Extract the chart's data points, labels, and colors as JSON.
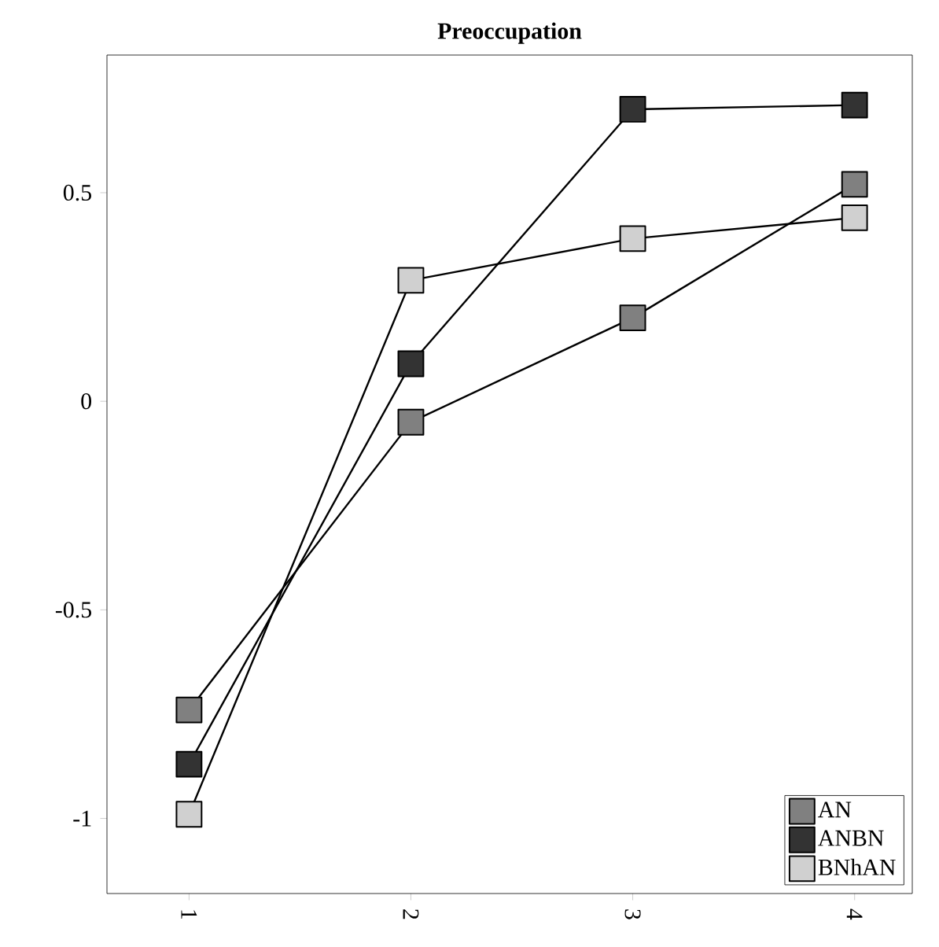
{
  "chart_data": {
    "type": "line",
    "title": "Preoccupation",
    "categories": [
      "1",
      "2",
      "3",
      "4"
    ],
    "series": [
      {
        "name": "AN",
        "color": "#808080",
        "values": [
          -0.74,
          -0.05,
          0.2,
          0.52
        ]
      },
      {
        "name": "ANBN",
        "color": "#333333",
        "values": [
          -0.87,
          0.09,
          0.7,
          0.71
        ]
      },
      {
        "name": "BNhAN",
        "color": "#d0d0d0",
        "values": [
          -0.99,
          0.29,
          0.39,
          0.44
        ]
      }
    ],
    "ylim": [
      -1.18,
      0.83
    ],
    "yticks": [
      -1,
      -0.5,
      0,
      0.5
    ],
    "grid": false,
    "legend": "bottom right",
    "marker": "square",
    "line_style": "solid"
  }
}
